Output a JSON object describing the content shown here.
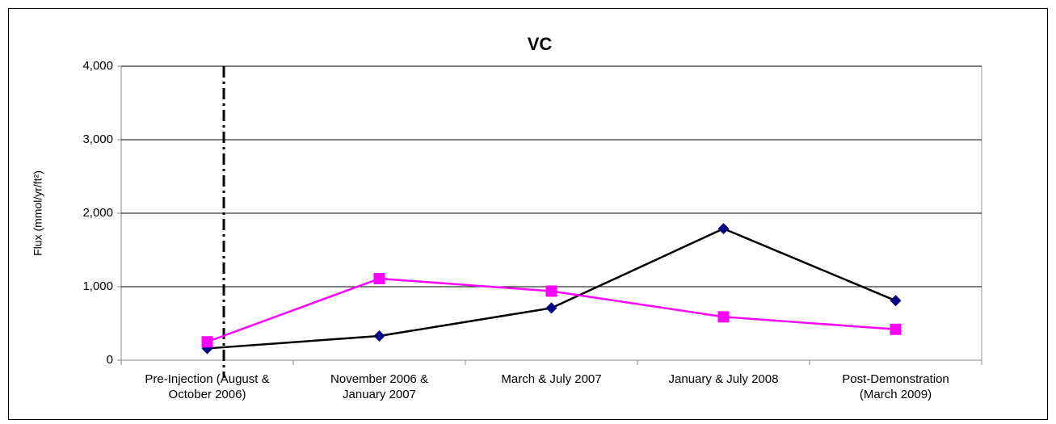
{
  "chart_data": {
    "type": "line",
    "title": "VC",
    "y_label": "Flux (mmol/yr/ft²)",
    "categories": [
      "Pre-Injection (August &\nOctober 2006)",
      "November 2006 &\nJanuary 2007",
      "March & July 2007",
      "January & July 2008",
      "Post-Demonstration\n(March 2009)"
    ],
    "series": [
      {
        "color": "#000000",
        "marker_color": "#000080",
        "marker": "diamond",
        "values": [
          160,
          330,
          710,
          1790,
          810
        ]
      },
      {
        "color": "#ff00ff",
        "marker_color": "#ff00ff",
        "marker": "square",
        "values": [
          250,
          1110,
          940,
          590,
          420
        ]
      }
    ],
    "ylim": [
      0,
      4000
    ],
    "yticks": [
      0,
      {
        "value": 1000,
        "label": "1,000"
      },
      {
        "value": 2000,
        "label": "2,000"
      },
      {
        "value": 3000,
        "label": "3,000"
      },
      {
        "value": 4000,
        "label": "4,000"
      }
    ],
    "grid": true
  }
}
